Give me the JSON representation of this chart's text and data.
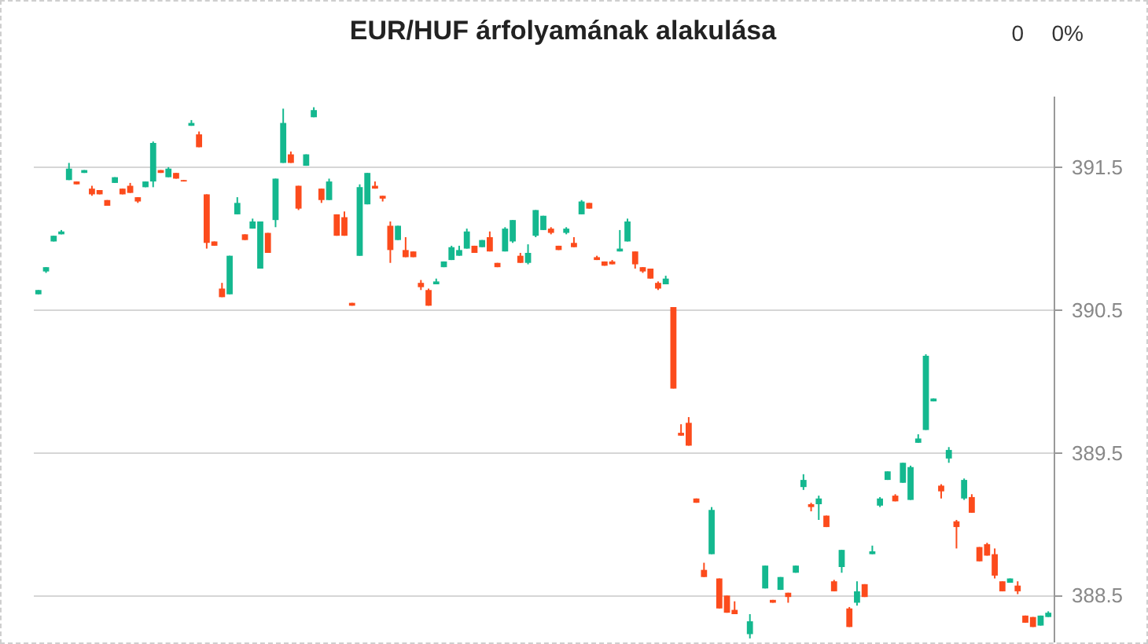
{
  "chart_data": {
    "type": "candlestick",
    "title": "EUR/HUF árfolyamának alakulása",
    "annotations": [
      "0",
      "0%"
    ],
    "categories": [
      null,
      null,
      null,
      null,
      null,
      null,
      null,
      null,
      null,
      null,
      null,
      null,
      null,
      null,
      null,
      null,
      null,
      null,
      null,
      null,
      null,
      null,
      null,
      null,
      null,
      null,
      null,
      null,
      null,
      null,
      null,
      null,
      null,
      null,
      null,
      null,
      null,
      null,
      null,
      null,
      null,
      null,
      null,
      null,
      null,
      null,
      null,
      null,
      null,
      null,
      null,
      null,
      null,
      null,
      null,
      null,
      null,
      null,
      null,
      null,
      null,
      null,
      null,
      null,
      null,
      null,
      null,
      null,
      null,
      null,
      null,
      null,
      null,
      null,
      null,
      null,
      null,
      null,
      null,
      null,
      null,
      null,
      null,
      null,
      null,
      null,
      null,
      null,
      null,
      null,
      null,
      null,
      null,
      null,
      null,
      null,
      null,
      null,
      null,
      null,
      null,
      null,
      null,
      null,
      null,
      null,
      null,
      null,
      null,
      null,
      null,
      null,
      null,
      null,
      null,
      null,
      null,
      null,
      null,
      null,
      null,
      null,
      null,
      null,
      null,
      null,
      null,
      null,
      null,
      null,
      null,
      null,
      null
    ],
    "ohlc": [
      [
        390.61,
        390.64,
        390.61,
        390.64
      ],
      [
        390.77,
        390.8,
        390.76,
        390.8
      ],
      [
        390.98,
        391.02,
        390.98,
        391.02
      ],
      [
        391.03,
        391.06,
        391.03,
        391.05
      ],
      [
        391.41,
        391.53,
        391.41,
        391.49
      ],
      [
        391.4,
        391.4,
        391.38,
        391.38
      ],
      [
        391.46,
        391.48,
        391.46,
        391.48
      ],
      [
        391.35,
        391.37,
        391.3,
        391.31
      ],
      [
        391.34,
        391.34,
        391.31,
        391.31
      ],
      [
        391.27,
        391.27,
        391.23,
        391.23
      ],
      [
        391.39,
        391.43,
        391.39,
        391.43
      ],
      [
        391.35,
        391.35,
        391.31,
        391.31
      ],
      [
        391.37,
        391.39,
        391.32,
        391.32
      ],
      [
        391.29,
        391.29,
        391.25,
        391.26
      ],
      [
        391.36,
        391.4,
        391.36,
        391.4
      ],
      [
        391.4,
        391.68,
        391.36,
        391.67
      ],
      [
        391.48,
        391.48,
        391.46,
        391.46
      ],
      [
        391.43,
        391.5,
        391.43,
        391.49
      ],
      [
        391.46,
        391.46,
        391.42,
        391.42
      ],
      [
        391.41,
        391.41,
        391.4,
        391.4
      ],
      [
        391.79,
        391.83,
        391.79,
        391.81
      ],
      [
        391.73,
        391.75,
        391.64,
        391.64
      ],
      [
        391.31,
        391.31,
        390.93,
        390.97
      ],
      [
        390.98,
        390.98,
        390.95,
        390.95
      ],
      [
        390.65,
        390.69,
        390.59,
        390.59
      ],
      [
        390.61,
        390.88,
        390.61,
        390.88
      ],
      [
        391.17,
        391.29,
        391.17,
        391.25
      ],
      [
        391.03,
        391.03,
        390.99,
        390.99
      ],
      [
        391.07,
        391.14,
        391.07,
        391.12
      ],
      [
        390.79,
        391.12,
        390.79,
        391.12
      ],
      [
        391.04,
        391.04,
        390.9,
        390.9
      ],
      [
        391.13,
        391.42,
        391.08,
        391.42
      ],
      [
        391.53,
        391.91,
        391.53,
        391.81
      ],
      [
        391.59,
        391.61,
        391.53,
        391.53
      ],
      [
        391.37,
        391.37,
        391.2,
        391.21
      ],
      [
        391.51,
        391.59,
        391.51,
        391.59
      ],
      [
        391.85,
        391.92,
        391.85,
        391.9
      ],
      [
        391.35,
        391.35,
        391.25,
        391.27
      ],
      [
        391.27,
        391.42,
        391.27,
        391.4
      ],
      [
        391.17,
        391.17,
        391.02,
        391.02
      ],
      [
        391.15,
        391.19,
        391.02,
        391.02
      ],
      [
        390.55,
        390.55,
        390.53,
        390.53
      ],
      [
        390.88,
        391.38,
        390.88,
        391.36
      ],
      [
        391.24,
        391.46,
        391.24,
        391.46
      ],
      [
        391.37,
        391.4,
        391.35,
        391.35
      ],
      [
        391.3,
        391.3,
        391.26,
        391.28
      ],
      [
        391.09,
        391.12,
        390.83,
        390.92
      ],
      [
        390.99,
        391.09,
        390.99,
        391.09
      ],
      [
        390.92,
        391.01,
        390.87,
        390.87
      ],
      [
        390.91,
        390.91,
        390.87,
        390.87
      ],
      [
        390.69,
        390.71,
        390.64,
        390.66
      ],
      [
        390.64,
        390.65,
        390.53,
        390.53
      ],
      [
        390.68,
        390.72,
        390.68,
        390.7
      ],
      [
        390.8,
        390.84,
        390.8,
        390.84
      ],
      [
        390.85,
        390.95,
        390.85,
        390.94
      ],
      [
        390.88,
        390.95,
        390.88,
        390.92
      ],
      [
        390.93,
        391.07,
        390.93,
        391.05
      ],
      [
        390.95,
        390.95,
        390.9,
        390.9
      ],
      [
        390.94,
        390.99,
        390.94,
        390.99
      ],
      [
        391.01,
        391.05,
        390.91,
        390.91
      ],
      [
        390.83,
        390.83,
        390.8,
        390.8
      ],
      [
        390.91,
        391.08,
        390.91,
        391.07
      ],
      [
        390.98,
        391.13,
        390.97,
        391.13
      ],
      [
        390.88,
        390.9,
        390.83,
        390.83
      ],
      [
        390.83,
        390.96,
        390.82,
        390.9
      ],
      [
        391.02,
        391.2,
        391.01,
        391.2
      ],
      [
        391.06,
        391.16,
        391.06,
        391.16
      ],
      [
        391.07,
        391.08,
        391.03,
        391.04
      ],
      [
        390.95,
        390.95,
        390.92,
        390.92
      ],
      [
        391.04,
        391.08,
        391.03,
        391.07
      ],
      [
        390.97,
        391.01,
        390.94,
        390.94
      ],
      [
        391.17,
        391.27,
        391.17,
        391.26
      ],
      [
        391.25,
        391.25,
        391.21,
        391.21
      ],
      [
        390.87,
        390.88,
        390.85,
        390.85
      ],
      [
        390.84,
        390.84,
        390.81,
        390.81
      ],
      [
        390.84,
        390.85,
        390.82,
        390.82
      ],
      [
        390.91,
        391.06,
        390.91,
        390.93
      ],
      [
        390.98,
        391.14,
        390.98,
        391.12
      ],
      [
        390.91,
        390.91,
        390.79,
        390.82
      ],
      [
        390.8,
        390.8,
        390.76,
        390.77
      ],
      [
        390.79,
        390.79,
        390.72,
        390.72
      ],
      [
        390.69,
        390.7,
        390.64,
        390.65
      ],
      [
        390.68,
        390.74,
        390.68,
        390.72
      ],
      [
        390.52,
        390.52,
        389.95,
        389.95
      ],
      [
        389.64,
        389.7,
        389.62,
        389.62
      ],
      [
        389.71,
        389.75,
        389.55,
        389.55
      ],
      [
        389.18,
        389.18,
        389.15,
        389.15
      ],
      [
        388.68,
        388.73,
        388.63,
        388.63
      ],
      [
        388.79,
        389.12,
        388.79,
        389.1
      ],
      [
        388.62,
        388.62,
        388.41,
        388.41
      ],
      [
        388.5,
        388.5,
        388.38,
        388.38
      ],
      [
        388.4,
        388.46,
        388.37,
        388.37
      ],
      null,
      [
        388.23,
        388.37,
        388.2,
        388.32
      ],
      null,
      [
        388.55,
        388.71,
        388.55,
        388.71
      ],
      [
        388.47,
        388.47,
        388.45,
        388.45
      ],
      [
        388.54,
        388.63,
        388.54,
        388.63
      ],
      [
        388.52,
        388.52,
        388.45,
        388.49
      ],
      [
        388.66,
        388.71,
        388.66,
        388.71
      ],
      [
        389.26,
        389.35,
        389.24,
        389.31
      ],
      [
        389.14,
        389.15,
        389.09,
        389.12
      ],
      [
        389.14,
        389.2,
        389.03,
        389.18
      ],
      [
        389.06,
        389.06,
        388.98,
        388.98
      ],
      [
        388.6,
        388.61,
        388.53,
        388.53
      ],
      [
        388.7,
        388.82,
        388.66,
        388.82
      ],
      [
        388.41,
        388.42,
        388.28,
        388.28
      ],
      [
        388.45,
        388.6,
        388.43,
        388.53
      ],
      [
        388.58,
        388.58,
        388.49,
        388.49
      ],
      [
        388.79,
        388.85,
        388.79,
        388.81
      ],
      [
        389.13,
        389.19,
        389.12,
        389.18
      ],
      [
        389.31,
        389.37,
        389.31,
        389.37
      ],
      [
        389.2,
        389.21,
        389.16,
        389.16
      ],
      [
        389.29,
        389.43,
        389.29,
        389.43
      ],
      [
        389.17,
        389.41,
        389.17,
        389.4
      ],
      [
        389.57,
        389.63,
        389.57,
        389.6
      ],
      [
        389.66,
        390.19,
        389.66,
        390.18
      ],
      [
        389.86,
        389.88,
        389.86,
        389.88
      ],
      [
        389.27,
        389.28,
        389.18,
        389.23
      ],
      [
        389.46,
        389.54,
        389.43,
        389.52
      ],
      [
        389.02,
        389.03,
        388.83,
        388.98
      ],
      [
        389.18,
        389.32,
        389.17,
        389.31
      ],
      [
        389.19,
        389.21,
        389.08,
        389.08
      ],
      [
        388.84,
        388.84,
        388.74,
        388.74
      ],
      [
        388.86,
        388.87,
        388.78,
        388.78
      ],
      [
        388.79,
        388.83,
        388.62,
        388.64
      ],
      [
        388.6,
        388.6,
        388.53,
        388.53
      ],
      [
        388.59,
        388.62,
        388.59,
        388.62
      ],
      [
        388.57,
        388.6,
        388.51,
        388.53
      ],
      [
        388.36,
        388.36,
        388.31,
        388.31
      ],
      [
        388.35,
        388.35,
        388.28,
        388.28
      ],
      [
        388.29,
        388.36,
        388.29,
        388.36
      ],
      [
        388.35,
        388.39,
        388.35,
        388.38
      ]
    ],
    "colors": [
      "#14b88f",
      "#14b88f",
      "#14b88f",
      "#14b88f",
      "#14b88f",
      "#fc4b1c",
      "#14b88f",
      "#fc4b1c",
      "#fc4b1c",
      "#fc4b1c",
      "#14b88f",
      "#fc4b1c",
      "#fc4b1c",
      "#fc4b1c",
      "#14b88f",
      "#14b88f",
      "#fc4b1c",
      "#14b88f",
      "#fc4b1c",
      "#fc4b1c",
      "#14b88f",
      "#fc4b1c",
      "#fc4b1c",
      "#fc4b1c",
      "#fc4b1c",
      "#14b88f",
      "#14b88f",
      "#fc4b1c",
      "#14b88f",
      "#14b88f",
      "#fc4b1c",
      "#14b88f",
      "#14b88f",
      "#fc4b1c",
      "#fc4b1c",
      "#14b88f",
      "#14b88f",
      "#fc4b1c",
      "#14b88f",
      "#fc4b1c",
      "#fc4b1c",
      "#fc4b1c",
      "#14b88f",
      "#14b88f",
      "#fc4b1c",
      "#fc4b1c",
      "#fc4b1c",
      "#14b88f",
      "#fc4b1c",
      "#fc4b1c",
      "#fc4b1c",
      "#fc4b1c",
      "#14b88f",
      "#14b88f",
      "#14b88f",
      "#14b88f",
      "#14b88f",
      "#fc4b1c",
      "#14b88f",
      "#fc4b1c",
      "#fc4b1c",
      "#14b88f",
      "#14b88f",
      "#fc4b1c",
      "#14b88f",
      "#14b88f",
      "#14b88f",
      "#fc4b1c",
      "#fc4b1c",
      "#14b88f",
      "#fc4b1c",
      "#14b88f",
      "#fc4b1c",
      "#fc4b1c",
      "#fc4b1c",
      "#fc4b1c",
      "#14b88f",
      "#14b88f",
      "#fc4b1c",
      "#fc4b1c",
      "#fc4b1c",
      "#fc4b1c",
      "#14b88f",
      "#fc4b1c",
      "#fc4b1c",
      "#fc4b1c",
      "#fc4b1c",
      "#fc4b1c",
      "#14b88f",
      "#fc4b1c",
      "#fc4b1c",
      "#fc4b1c",
      null,
      "#14b88f",
      null,
      "#14b88f",
      "#fc4b1c",
      "#14b88f",
      "#fc4b1c",
      "#14b88f",
      "#14b88f",
      "#fc4b1c",
      "#14b88f",
      "#fc4b1c",
      "#fc4b1c",
      "#14b88f",
      "#fc4b1c",
      "#14b88f",
      "#fc4b1c",
      "#14b88f",
      "#14b88f",
      "#14b88f",
      "#fc4b1c",
      "#14b88f",
      "#14b88f",
      "#14b88f",
      "#14b88f",
      "#14b88f",
      "#fc4b1c",
      "#14b88f",
      "#fc4b1c",
      "#14b88f",
      "#fc4b1c",
      "#fc4b1c",
      "#fc4b1c",
      "#fc4b1c",
      "#fc4b1c",
      "#14b88f",
      "#fc4b1c",
      "#fc4b1c",
      "#fc4b1c",
      "#14b88f",
      "#14b88f"
    ],
    "ylim": [
      388.15,
      392.0
    ],
    "yticks": [
      388.5,
      389.5,
      390.5,
      391.5
    ],
    "grid": "y",
    "tick_labels": "y"
  }
}
